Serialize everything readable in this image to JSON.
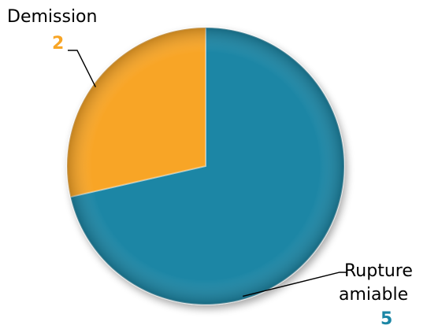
{
  "chart_data": {
    "type": "pie",
    "title": "",
    "slices": [
      {
        "label": "Rupture amiable",
        "label_lines": [
          "Rupture",
          "amiable"
        ],
        "value": 5,
        "value_text": "5",
        "color": "#1b86a5"
      },
      {
        "label": "Demission",
        "label_lines": [
          "Demission"
        ],
        "value": 2,
        "value_text": "2",
        "color": "#f8a525"
      }
    ],
    "start_angle": "12 o'clock",
    "direction": "clockwise",
    "legend": "none",
    "data_labels": "outside with leader lines"
  }
}
